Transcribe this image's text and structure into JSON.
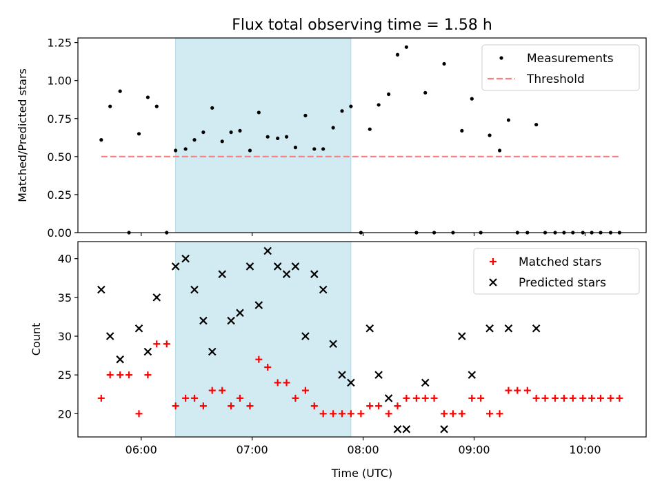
{
  "figure": {
    "title": "Flux total observing time = 1.58 h",
    "xlabel": "Time (UTC)",
    "x_ticks": [
      {
        "t": 6.0,
        "label": "06:00"
      },
      {
        "t": 7.0,
        "label": "07:00"
      },
      {
        "t": 8.0,
        "label": "08:00"
      },
      {
        "t": 9.0,
        "label": "09:00"
      },
      {
        "t": 10.0,
        "label": "10:00"
      }
    ],
    "x_range": [
      5.43,
      10.55
    ],
    "shaded_span": [
      6.31,
      7.89
    ],
    "shade_color": "#add8e6"
  },
  "chart_data": [
    {
      "type": "scatter",
      "ylabel": "Matched/Predicted stars",
      "ylim": [
        0.0,
        1.28
      ],
      "y_ticks": [
        0.0,
        0.25,
        0.5,
        0.75,
        1.0,
        1.25
      ],
      "y_tick_labels": [
        "0.00",
        "0.25",
        "0.50",
        "0.75",
        "1.00",
        "1.25"
      ],
      "legend": {
        "position": "top-right",
        "entries": [
          "Measurements",
          "Threshold"
        ]
      },
      "series": [
        {
          "name": "Measurements",
          "color": "#000000",
          "marker": "dot",
          "points": [
            [
              5.64,
              0.61
            ],
            [
              5.72,
              0.83
            ],
            [
              5.81,
              0.93
            ],
            [
              5.89,
              0.0
            ],
            [
              5.98,
              0.65
            ],
            [
              6.06,
              0.89
            ],
            [
              6.14,
              0.83
            ],
            [
              6.23,
              0.0
            ],
            [
              6.31,
              0.54
            ],
            [
              6.4,
              0.55
            ],
            [
              6.48,
              0.61
            ],
            [
              6.56,
              0.66
            ],
            [
              6.64,
              0.82
            ],
            [
              6.73,
              0.6
            ],
            [
              6.81,
              0.66
            ],
            [
              6.89,
              0.67
            ],
            [
              6.98,
              0.54
            ],
            [
              7.06,
              0.79
            ],
            [
              7.14,
              0.63
            ],
            [
              7.23,
              0.62
            ],
            [
              7.31,
              0.63
            ],
            [
              7.39,
              0.56
            ],
            [
              7.48,
              0.77
            ],
            [
              7.56,
              0.55
            ],
            [
              7.64,
              0.55
            ],
            [
              7.73,
              0.69
            ],
            [
              7.81,
              0.8
            ],
            [
              7.89,
              0.83
            ],
            [
              7.98,
              0.0
            ],
            [
              8.06,
              0.68
            ],
            [
              8.14,
              0.84
            ],
            [
              8.23,
              0.91
            ],
            [
              8.31,
              1.17
            ],
            [
              8.39,
              1.22
            ],
            [
              8.48,
              0.0
            ],
            [
              8.56,
              0.92
            ],
            [
              8.64,
              0.0
            ],
            [
              8.73,
              1.11
            ],
            [
              8.81,
              0.0
            ],
            [
              8.89,
              0.67
            ],
            [
              8.98,
              0.88
            ],
            [
              9.06,
              0.0
            ],
            [
              9.14,
              0.64
            ],
            [
              9.23,
              0.54
            ],
            [
              9.31,
              0.74
            ],
            [
              9.39,
              0.0
            ],
            [
              9.48,
              0.0
            ],
            [
              9.56,
              0.71
            ],
            [
              9.64,
              0.0
            ],
            [
              9.73,
              0.0
            ],
            [
              9.81,
              0.0
            ],
            [
              9.89,
              0.0
            ],
            [
              9.98,
              0.0
            ],
            [
              10.06,
              0.0
            ],
            [
              10.14,
              0.0
            ],
            [
              10.23,
              0.0
            ],
            [
              10.31,
              0.0
            ]
          ]
        },
        {
          "name": "Threshold",
          "color": "#ff7f7f",
          "style": "dashed-line",
          "points": [
            [
              5.64,
              0.5
            ],
            [
              10.31,
              0.5
            ]
          ]
        }
      ]
    },
    {
      "type": "scatter",
      "ylabel": "Count",
      "ylim": [
        17.0,
        42.2
      ],
      "y_ticks": [
        20,
        25,
        30,
        35,
        40
      ],
      "y_tick_labels": [
        "20",
        "25",
        "30",
        "35",
        "40"
      ],
      "legend": {
        "position": "top-right",
        "entries": [
          "Matched stars",
          "Predicted stars"
        ]
      },
      "series": [
        {
          "name": "Matched stars",
          "color": "#ff0000",
          "marker": "plus",
          "points": [
            [
              5.64,
              22
            ],
            [
              5.72,
              25
            ],
            [
              5.81,
              25
            ],
            [
              5.89,
              25
            ],
            [
              5.98,
              20
            ],
            [
              6.06,
              25
            ],
            [
              6.14,
              29
            ],
            [
              6.23,
              29
            ],
            [
              6.31,
              21
            ],
            [
              6.4,
              22
            ],
            [
              6.48,
              22
            ],
            [
              6.56,
              21
            ],
            [
              6.64,
              23
            ],
            [
              6.73,
              23
            ],
            [
              6.81,
              21
            ],
            [
              6.89,
              22
            ],
            [
              6.98,
              21
            ],
            [
              7.06,
              27
            ],
            [
              7.14,
              26
            ],
            [
              7.23,
              24
            ],
            [
              7.31,
              24
            ],
            [
              7.39,
              22
            ],
            [
              7.48,
              23
            ],
            [
              7.56,
              21
            ],
            [
              7.64,
              20
            ],
            [
              7.73,
              20
            ],
            [
              7.81,
              20
            ],
            [
              7.89,
              20
            ],
            [
              7.98,
              20
            ],
            [
              8.06,
              21
            ],
            [
              8.14,
              21
            ],
            [
              8.23,
              20
            ],
            [
              8.31,
              21
            ],
            [
              8.39,
              22
            ],
            [
              8.48,
              22
            ],
            [
              8.56,
              22
            ],
            [
              8.64,
              22
            ],
            [
              8.73,
              20
            ],
            [
              8.81,
              20
            ],
            [
              8.89,
              20
            ],
            [
              8.98,
              22
            ],
            [
              9.06,
              22
            ],
            [
              9.14,
              20
            ],
            [
              9.23,
              20
            ],
            [
              9.31,
              23
            ],
            [
              9.39,
              23
            ],
            [
              9.48,
              23
            ],
            [
              9.56,
              22
            ],
            [
              9.64,
              22
            ],
            [
              9.73,
              22
            ],
            [
              9.81,
              22
            ],
            [
              9.89,
              22
            ],
            [
              9.98,
              22
            ],
            [
              10.06,
              22
            ],
            [
              10.14,
              22
            ],
            [
              10.23,
              22
            ],
            [
              10.31,
              22
            ]
          ]
        },
        {
          "name": "Predicted stars",
          "color": "#000000",
          "marker": "x",
          "points": [
            [
              5.64,
              36
            ],
            [
              5.72,
              30
            ],
            [
              5.81,
              27
            ],
            [
              5.98,
              31
            ],
            [
              6.06,
              28
            ],
            [
              6.14,
              35
            ],
            [
              6.31,
              39
            ],
            [
              6.4,
              40
            ],
            [
              6.48,
              36
            ],
            [
              6.56,
              32
            ],
            [
              6.64,
              28
            ],
            [
              6.73,
              38
            ],
            [
              6.81,
              32
            ],
            [
              6.89,
              33
            ],
            [
              6.98,
              39
            ],
            [
              7.06,
              34
            ],
            [
              7.14,
              41
            ],
            [
              7.23,
              39
            ],
            [
              7.31,
              38
            ],
            [
              7.39,
              39
            ],
            [
              7.48,
              30
            ],
            [
              7.56,
              38
            ],
            [
              7.64,
              36
            ],
            [
              7.73,
              29
            ],
            [
              7.81,
              25
            ],
            [
              7.89,
              24
            ],
            [
              8.06,
              31
            ],
            [
              8.14,
              25
            ],
            [
              8.23,
              22
            ],
            [
              8.31,
              18
            ],
            [
              8.39,
              18
            ],
            [
              8.56,
              24
            ],
            [
              8.73,
              18
            ],
            [
              8.89,
              30
            ],
            [
              8.98,
              25
            ],
            [
              9.14,
              31
            ],
            [
              9.31,
              31
            ],
            [
              9.56,
              31
            ]
          ]
        }
      ]
    }
  ]
}
